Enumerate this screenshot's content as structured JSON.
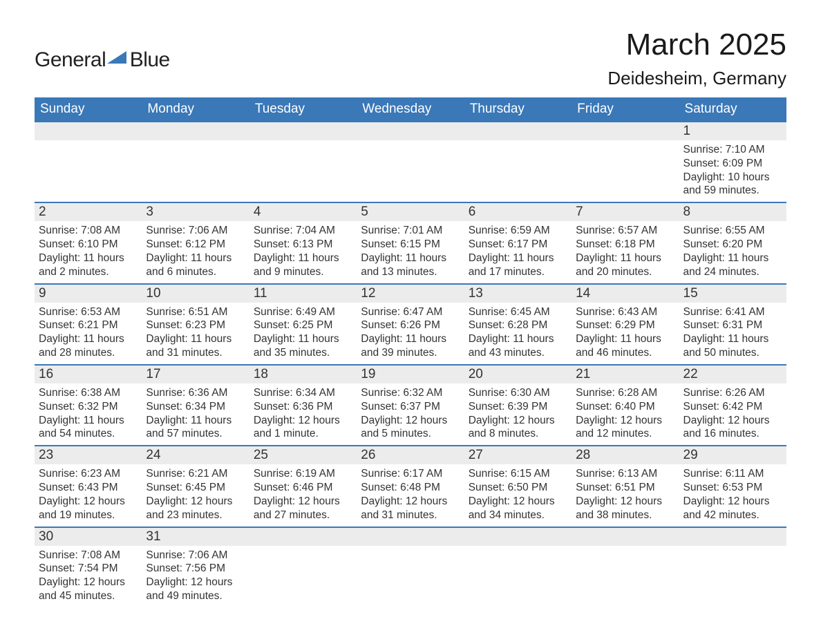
{
  "brand": {
    "line1": "General",
    "line2": "Blue"
  },
  "title": "March 2025",
  "location": "Deidesheim, Germany",
  "colors": {
    "header_bg": "#3a78b8",
    "header_text": "#ffffff",
    "daynum_bg": "#ececec",
    "row_divider": "#3a78b8",
    "body_text": "#333333",
    "background": "#ffffff"
  },
  "fonts": {
    "title_size_pt": 33,
    "location_size_pt": 20,
    "header_size_pt": 14,
    "daynum_size_pt": 14,
    "cell_size_pt": 12
  },
  "day_headers": [
    "Sunday",
    "Monday",
    "Tuesday",
    "Wednesday",
    "Thursday",
    "Friday",
    "Saturday"
  ],
  "weeks": [
    [
      null,
      null,
      null,
      null,
      null,
      null,
      {
        "n": "1",
        "sr": "Sunrise: 7:10 AM",
        "ss": "Sunset: 6:09 PM",
        "d1": "Daylight: 10 hours",
        "d2": "and 59 minutes."
      }
    ],
    [
      {
        "n": "2",
        "sr": "Sunrise: 7:08 AM",
        "ss": "Sunset: 6:10 PM",
        "d1": "Daylight: 11 hours",
        "d2": "and 2 minutes."
      },
      {
        "n": "3",
        "sr": "Sunrise: 7:06 AM",
        "ss": "Sunset: 6:12 PM",
        "d1": "Daylight: 11 hours",
        "d2": "and 6 minutes."
      },
      {
        "n": "4",
        "sr": "Sunrise: 7:04 AM",
        "ss": "Sunset: 6:13 PM",
        "d1": "Daylight: 11 hours",
        "d2": "and 9 minutes."
      },
      {
        "n": "5",
        "sr": "Sunrise: 7:01 AM",
        "ss": "Sunset: 6:15 PM",
        "d1": "Daylight: 11 hours",
        "d2": "and 13 minutes."
      },
      {
        "n": "6",
        "sr": "Sunrise: 6:59 AM",
        "ss": "Sunset: 6:17 PM",
        "d1": "Daylight: 11 hours",
        "d2": "and 17 minutes."
      },
      {
        "n": "7",
        "sr": "Sunrise: 6:57 AM",
        "ss": "Sunset: 6:18 PM",
        "d1": "Daylight: 11 hours",
        "d2": "and 20 minutes."
      },
      {
        "n": "8",
        "sr": "Sunrise: 6:55 AM",
        "ss": "Sunset: 6:20 PM",
        "d1": "Daylight: 11 hours",
        "d2": "and 24 minutes."
      }
    ],
    [
      {
        "n": "9",
        "sr": "Sunrise: 6:53 AM",
        "ss": "Sunset: 6:21 PM",
        "d1": "Daylight: 11 hours",
        "d2": "and 28 minutes."
      },
      {
        "n": "10",
        "sr": "Sunrise: 6:51 AM",
        "ss": "Sunset: 6:23 PM",
        "d1": "Daylight: 11 hours",
        "d2": "and 31 minutes."
      },
      {
        "n": "11",
        "sr": "Sunrise: 6:49 AM",
        "ss": "Sunset: 6:25 PM",
        "d1": "Daylight: 11 hours",
        "d2": "and 35 minutes."
      },
      {
        "n": "12",
        "sr": "Sunrise: 6:47 AM",
        "ss": "Sunset: 6:26 PM",
        "d1": "Daylight: 11 hours",
        "d2": "and 39 minutes."
      },
      {
        "n": "13",
        "sr": "Sunrise: 6:45 AM",
        "ss": "Sunset: 6:28 PM",
        "d1": "Daylight: 11 hours",
        "d2": "and 43 minutes."
      },
      {
        "n": "14",
        "sr": "Sunrise: 6:43 AM",
        "ss": "Sunset: 6:29 PM",
        "d1": "Daylight: 11 hours",
        "d2": "and 46 minutes."
      },
      {
        "n": "15",
        "sr": "Sunrise: 6:41 AM",
        "ss": "Sunset: 6:31 PM",
        "d1": "Daylight: 11 hours",
        "d2": "and 50 minutes."
      }
    ],
    [
      {
        "n": "16",
        "sr": "Sunrise: 6:38 AM",
        "ss": "Sunset: 6:32 PM",
        "d1": "Daylight: 11 hours",
        "d2": "and 54 minutes."
      },
      {
        "n": "17",
        "sr": "Sunrise: 6:36 AM",
        "ss": "Sunset: 6:34 PM",
        "d1": "Daylight: 11 hours",
        "d2": "and 57 minutes."
      },
      {
        "n": "18",
        "sr": "Sunrise: 6:34 AM",
        "ss": "Sunset: 6:36 PM",
        "d1": "Daylight: 12 hours",
        "d2": "and 1 minute."
      },
      {
        "n": "19",
        "sr": "Sunrise: 6:32 AM",
        "ss": "Sunset: 6:37 PM",
        "d1": "Daylight: 12 hours",
        "d2": "and 5 minutes."
      },
      {
        "n": "20",
        "sr": "Sunrise: 6:30 AM",
        "ss": "Sunset: 6:39 PM",
        "d1": "Daylight: 12 hours",
        "d2": "and 8 minutes."
      },
      {
        "n": "21",
        "sr": "Sunrise: 6:28 AM",
        "ss": "Sunset: 6:40 PM",
        "d1": "Daylight: 12 hours",
        "d2": "and 12 minutes."
      },
      {
        "n": "22",
        "sr": "Sunrise: 6:26 AM",
        "ss": "Sunset: 6:42 PM",
        "d1": "Daylight: 12 hours",
        "d2": "and 16 minutes."
      }
    ],
    [
      {
        "n": "23",
        "sr": "Sunrise: 6:23 AM",
        "ss": "Sunset: 6:43 PM",
        "d1": "Daylight: 12 hours",
        "d2": "and 19 minutes."
      },
      {
        "n": "24",
        "sr": "Sunrise: 6:21 AM",
        "ss": "Sunset: 6:45 PM",
        "d1": "Daylight: 12 hours",
        "d2": "and 23 minutes."
      },
      {
        "n": "25",
        "sr": "Sunrise: 6:19 AM",
        "ss": "Sunset: 6:46 PM",
        "d1": "Daylight: 12 hours",
        "d2": "and 27 minutes."
      },
      {
        "n": "26",
        "sr": "Sunrise: 6:17 AM",
        "ss": "Sunset: 6:48 PM",
        "d1": "Daylight: 12 hours",
        "d2": "and 31 minutes."
      },
      {
        "n": "27",
        "sr": "Sunrise: 6:15 AM",
        "ss": "Sunset: 6:50 PM",
        "d1": "Daylight: 12 hours",
        "d2": "and 34 minutes."
      },
      {
        "n": "28",
        "sr": "Sunrise: 6:13 AM",
        "ss": "Sunset: 6:51 PM",
        "d1": "Daylight: 12 hours",
        "d2": "and 38 minutes."
      },
      {
        "n": "29",
        "sr": "Sunrise: 6:11 AM",
        "ss": "Sunset: 6:53 PM",
        "d1": "Daylight: 12 hours",
        "d2": "and 42 minutes."
      }
    ],
    [
      {
        "n": "30",
        "sr": "Sunrise: 7:08 AM",
        "ss": "Sunset: 7:54 PM",
        "d1": "Daylight: 12 hours",
        "d2": "and 45 minutes."
      },
      {
        "n": "31",
        "sr": "Sunrise: 7:06 AM",
        "ss": "Sunset: 7:56 PM",
        "d1": "Daylight: 12 hours",
        "d2": "and 49 minutes."
      },
      null,
      null,
      null,
      null,
      null
    ]
  ]
}
